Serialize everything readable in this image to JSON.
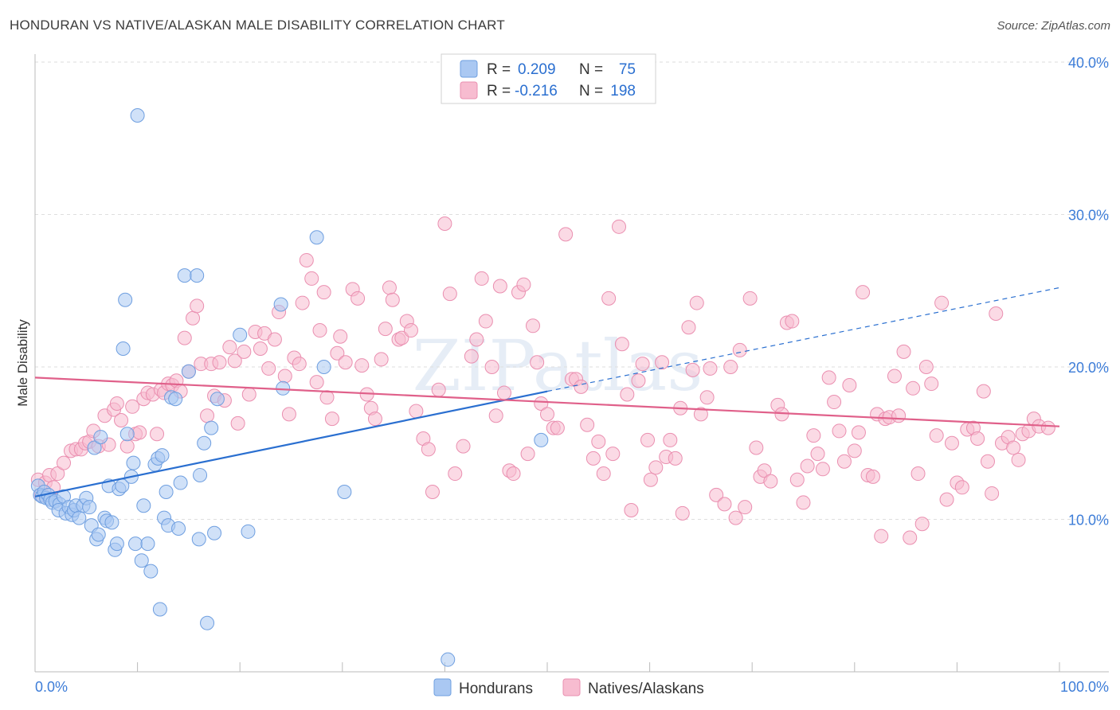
{
  "header": {
    "title": "HONDURAN VS NATIVE/ALASKAN MALE DISABILITY CORRELATION CHART",
    "source": "Source: ZipAtlas.com"
  },
  "legend": {
    "r_label": "R =",
    "n_label": "N =",
    "series": [
      {
        "r": "0.209",
        "n": "75"
      },
      {
        "r": "-0.216",
        "n": "198"
      }
    ]
  },
  "watermark": "ZIPatlas",
  "chart_data": {
    "type": "scatter",
    "title": "HONDURAN VS NATIVE/ALASKAN MALE DISABILITY CORRELATION CHART",
    "xlabel": "",
    "ylabel": "Male Disability",
    "xlim": [
      0,
      100
    ],
    "ylim": [
      0,
      40
    ],
    "x_tick_labels": [
      "0.0%",
      "100.0%"
    ],
    "y_ticks": [
      10,
      20,
      30,
      40
    ],
    "y_tick_labels": [
      "10.0%",
      "20.0%",
      "30.0%",
      "40.0%"
    ],
    "colors": {
      "hondurans_fill": "#aac8f2",
      "hondurans_stroke": "#6f9fe0",
      "hondurans_line": "#2a6fd0",
      "natives_fill": "#f7bcd0",
      "natives_stroke": "#ea8fb0",
      "natives_line": "#e0608a",
      "tick_color": "#3d7dd8"
    },
    "series": [
      {
        "name": "Hondurans",
        "r": 0.209,
        "n": 75,
        "trend": {
          "x0": 0,
          "y0": 11.5,
          "x1": 50,
          "y1": 18.4,
          "dashed_to_x": 100,
          "dashed_to_y": 25.2
        },
        "points": [
          [
            0.3,
            12.2
          ],
          [
            0.5,
            11.6
          ],
          [
            0.7,
            11.5
          ],
          [
            0.9,
            11.8
          ],
          [
            1.1,
            11.4
          ],
          [
            1.3,
            11.6
          ],
          [
            1.5,
            11.3
          ],
          [
            1.7,
            11.1
          ],
          [
            2.0,
            11.2
          ],
          [
            2.4,
            11.0
          ],
          [
            2.3,
            10.6
          ],
          [
            2.8,
            11.5
          ],
          [
            3.0,
            10.4
          ],
          [
            3.3,
            10.8
          ],
          [
            3.6,
            10.3
          ],
          [
            3.8,
            10.6
          ],
          [
            4.0,
            10.9
          ],
          [
            4.3,
            10.1
          ],
          [
            4.7,
            10.9
          ],
          [
            5.0,
            11.4
          ],
          [
            5.3,
            10.8
          ],
          [
            5.5,
            9.6
          ],
          [
            5.8,
            14.7
          ],
          [
            6.0,
            8.7
          ],
          [
            6.2,
            9.0
          ],
          [
            6.4,
            15.4
          ],
          [
            6.8,
            10.1
          ],
          [
            7.2,
            12.2
          ],
          [
            7.0,
            9.9
          ],
          [
            7.5,
            9.8
          ],
          [
            7.8,
            8.0
          ],
          [
            8.0,
            8.4
          ],
          [
            8.2,
            12.0
          ],
          [
            8.5,
            12.2
          ],
          [
            8.6,
            21.2
          ],
          [
            8.8,
            24.4
          ],
          [
            9.0,
            15.6
          ],
          [
            9.4,
            12.8
          ],
          [
            9.6,
            13.7
          ],
          [
            9.8,
            8.4
          ],
          [
            10.0,
            36.5
          ],
          [
            10.4,
            7.3
          ],
          [
            10.6,
            10.9
          ],
          [
            11.0,
            8.4
          ],
          [
            11.3,
            6.6
          ],
          [
            11.7,
            13.6
          ],
          [
            12.0,
            14.0
          ],
          [
            12.2,
            4.1
          ],
          [
            12.4,
            14.2
          ],
          [
            12.6,
            10.1
          ],
          [
            12.8,
            11.8
          ],
          [
            13.0,
            9.6
          ],
          [
            13.3,
            18.0
          ],
          [
            13.7,
            17.9
          ],
          [
            14.0,
            9.4
          ],
          [
            14.2,
            12.4
          ],
          [
            14.6,
            26.0
          ],
          [
            15.0,
            19.7
          ],
          [
            15.8,
            26.0
          ],
          [
            16.0,
            8.7
          ],
          [
            16.1,
            12.9
          ],
          [
            16.5,
            15.0
          ],
          [
            16.8,
            3.2
          ],
          [
            17.2,
            16.0
          ],
          [
            17.5,
            9.1
          ],
          [
            17.8,
            17.9
          ],
          [
            20.0,
            22.1
          ],
          [
            20.8,
            9.2
          ],
          [
            24.0,
            24.1
          ],
          [
            24.2,
            18.6
          ],
          [
            27.5,
            28.5
          ],
          [
            28.2,
            20.0
          ],
          [
            30.2,
            11.8
          ],
          [
            40.3,
            0.8
          ],
          [
            49.4,
            15.2
          ]
        ]
      },
      {
        "name": "Natives/Alaskans",
        "r": -0.216,
        "n": 198,
        "trend": {
          "x0": 0,
          "y0": 19.3,
          "x1": 100,
          "y1": 16.1
        },
        "points": [
          [
            0.3,
            12.6
          ],
          [
            0.6,
            11.6
          ],
          [
            1.0,
            12.4
          ],
          [
            1.4,
            12.9
          ],
          [
            1.8,
            12.1
          ],
          [
            2.2,
            13.0
          ],
          [
            2.8,
            13.7
          ],
          [
            3.5,
            14.5
          ],
          [
            4.0,
            14.6
          ],
          [
            4.5,
            14.6
          ],
          [
            4.9,
            15.0
          ],
          [
            5.3,
            15.1
          ],
          [
            5.7,
            15.8
          ],
          [
            6.2,
            14.8
          ],
          [
            6.8,
            16.8
          ],
          [
            7.2,
            14.9
          ],
          [
            7.7,
            17.2
          ],
          [
            8.0,
            17.6
          ],
          [
            8.4,
            16.5
          ],
          [
            9.0,
            14.8
          ],
          [
            9.5,
            17.4
          ],
          [
            9.8,
            15.6
          ],
          [
            10.2,
            15.7
          ],
          [
            10.6,
            17.9
          ],
          [
            11.0,
            18.3
          ],
          [
            11.5,
            18.2
          ],
          [
            11.9,
            15.6
          ],
          [
            12.3,
            18.5
          ],
          [
            12.6,
            18.3
          ],
          [
            13.0,
            18.9
          ],
          [
            13.4,
            18.8
          ],
          [
            13.8,
            19.1
          ],
          [
            14.2,
            18.4
          ],
          [
            14.6,
            21.9
          ],
          [
            15.0,
            19.7
          ],
          [
            15.4,
            23.2
          ],
          [
            15.8,
            24.0
          ],
          [
            16.2,
            20.2
          ],
          [
            16.8,
            16.8
          ],
          [
            17.2,
            20.2
          ],
          [
            17.5,
            18.1
          ],
          [
            18.0,
            20.3
          ],
          [
            18.5,
            17.8
          ],
          [
            19.0,
            21.3
          ],
          [
            19.5,
            20.4
          ],
          [
            19.8,
            16.3
          ],
          [
            20.4,
            21.0
          ],
          [
            20.9,
            18.2
          ],
          [
            21.5,
            22.3
          ],
          [
            22.0,
            21.2
          ],
          [
            22.4,
            22.2
          ],
          [
            22.8,
            19.9
          ],
          [
            23.4,
            21.8
          ],
          [
            23.8,
            23.6
          ],
          [
            24.4,
            19.4
          ],
          [
            24.8,
            16.9
          ],
          [
            25.3,
            20.6
          ],
          [
            25.8,
            20.2
          ],
          [
            26.1,
            24.2
          ],
          [
            26.5,
            27.0
          ],
          [
            27.0,
            25.8
          ],
          [
            27.5,
            19.0
          ],
          [
            27.8,
            22.4
          ],
          [
            28.2,
            24.9
          ],
          [
            28.5,
            18.0
          ],
          [
            29.0,
            16.6
          ],
          [
            29.5,
            20.9
          ],
          [
            29.8,
            22.0
          ],
          [
            30.3,
            20.3
          ],
          [
            31.0,
            25.1
          ],
          [
            31.5,
            24.5
          ],
          [
            31.9,
            20.1
          ],
          [
            32.4,
            18.2
          ],
          [
            32.8,
            17.3
          ],
          [
            33.2,
            16.6
          ],
          [
            33.8,
            20.5
          ],
          [
            34.2,
            22.5
          ],
          [
            34.6,
            25.2
          ],
          [
            34.9,
            24.4
          ],
          [
            35.5,
            21.8
          ],
          [
            35.8,
            21.9
          ],
          [
            36.3,
            23.0
          ],
          [
            36.7,
            22.4
          ],
          [
            37.2,
            17.1
          ],
          [
            37.9,
            15.3
          ],
          [
            38.4,
            14.6
          ],
          [
            38.8,
            11.8
          ],
          [
            39.4,
            18.5
          ],
          [
            40.0,
            29.4
          ],
          [
            40.5,
            24.8
          ],
          [
            41.0,
            13.0
          ],
          [
            41.8,
            14.8
          ],
          [
            42.6,
            20.7
          ],
          [
            43.1,
            21.8
          ],
          [
            43.6,
            25.8
          ],
          [
            44.0,
            23.0
          ],
          [
            44.6,
            20.0
          ],
          [
            45.0,
            16.8
          ],
          [
            45.4,
            25.3
          ],
          [
            45.8,
            18.3
          ],
          [
            46.3,
            13.2
          ],
          [
            46.7,
            13.0
          ],
          [
            47.2,
            24.9
          ],
          [
            47.7,
            25.4
          ],
          [
            48.1,
            14.3
          ],
          [
            48.6,
            22.7
          ],
          [
            49.0,
            20.3
          ],
          [
            49.4,
            17.6
          ],
          [
            50.0,
            16.9
          ],
          [
            50.6,
            16.0
          ],
          [
            51.0,
            16.0
          ],
          [
            51.8,
            28.7
          ],
          [
            52.4,
            19.2
          ],
          [
            52.8,
            19.2
          ],
          [
            53.3,
            18.7
          ],
          [
            53.9,
            16.2
          ],
          [
            54.5,
            14.0
          ],
          [
            55.0,
            15.1
          ],
          [
            55.5,
            13.0
          ],
          [
            56.0,
            24.5
          ],
          [
            56.4,
            14.3
          ],
          [
            57.0,
            29.2
          ],
          [
            57.3,
            21.5
          ],
          [
            57.8,
            18.2
          ],
          [
            58.2,
            10.6
          ],
          [
            58.9,
            19.1
          ],
          [
            59.3,
            20.2
          ],
          [
            59.8,
            15.2
          ],
          [
            60.1,
            12.6
          ],
          [
            60.6,
            13.4
          ],
          [
            61.2,
            20.3
          ],
          [
            61.6,
            14.1
          ],
          [
            62.0,
            15.2
          ],
          [
            62.5,
            14.0
          ],
          [
            63.0,
            17.3
          ],
          [
            63.2,
            10.4
          ],
          [
            63.8,
            22.6
          ],
          [
            64.2,
            19.8
          ],
          [
            64.6,
            24.2
          ],
          [
            65.0,
            16.9
          ],
          [
            65.6,
            18.0
          ],
          [
            65.9,
            19.9
          ],
          [
            66.5,
            11.6
          ],
          [
            67.3,
            11.0
          ],
          [
            67.9,
            20.0
          ],
          [
            68.4,
            10.1
          ],
          [
            68.8,
            21.1
          ],
          [
            69.3,
            10.8
          ],
          [
            69.8,
            24.5
          ],
          [
            70.4,
            14.7
          ],
          [
            70.8,
            12.8
          ],
          [
            71.2,
            13.2
          ],
          [
            71.8,
            12.5
          ],
          [
            72.5,
            17.5
          ],
          [
            72.9,
            16.9
          ],
          [
            73.4,
            22.9
          ],
          [
            73.9,
            23.0
          ],
          [
            74.4,
            12.6
          ],
          [
            75.0,
            11.1
          ],
          [
            75.4,
            13.5
          ],
          [
            76.0,
            15.5
          ],
          [
            76.4,
            14.3
          ],
          [
            76.9,
            13.3
          ],
          [
            77.5,
            19.3
          ],
          [
            78.0,
            17.7
          ],
          [
            78.5,
            15.8
          ],
          [
            79.0,
            13.8
          ],
          [
            79.5,
            18.8
          ],
          [
            80.0,
            14.5
          ],
          [
            80.4,
            15.7
          ],
          [
            80.8,
            24.9
          ],
          [
            81.3,
            12.9
          ],
          [
            81.8,
            12.8
          ],
          [
            82.2,
            16.9
          ],
          [
            82.6,
            8.9
          ],
          [
            83.0,
            16.6
          ],
          [
            83.4,
            16.7
          ],
          [
            83.9,
            19.4
          ],
          [
            84.3,
            16.8
          ],
          [
            84.8,
            21.0
          ],
          [
            85.4,
            8.8
          ],
          [
            85.7,
            18.6
          ],
          [
            86.2,
            13.0
          ],
          [
            86.6,
            9.7
          ],
          [
            87.0,
            20.0
          ],
          [
            87.5,
            18.9
          ],
          [
            88.0,
            15.5
          ],
          [
            88.5,
            24.2
          ],
          [
            89.0,
            11.3
          ],
          [
            89.5,
            15.0
          ],
          [
            90.0,
            12.4
          ],
          [
            90.5,
            12.1
          ],
          [
            91.0,
            15.9
          ],
          [
            91.6,
            16.0
          ],
          [
            92.0,
            15.3
          ],
          [
            92.6,
            18.4
          ],
          [
            93.0,
            13.8
          ],
          [
            93.4,
            11.7
          ],
          [
            93.8,
            23.5
          ],
          [
            94.4,
            15.0
          ],
          [
            95.0,
            15.4
          ],
          [
            95.5,
            14.7
          ],
          [
            96.0,
            13.9
          ],
          [
            96.4,
            15.6
          ],
          [
            97.0,
            15.8
          ],
          [
            97.5,
            16.6
          ],
          [
            98.0,
            16.1
          ],
          [
            98.9,
            16.0
          ]
        ]
      }
    ]
  },
  "bottom_legend": {
    "items": [
      {
        "label": "Hondurans"
      },
      {
        "label": "Natives/Alaskans"
      }
    ]
  }
}
